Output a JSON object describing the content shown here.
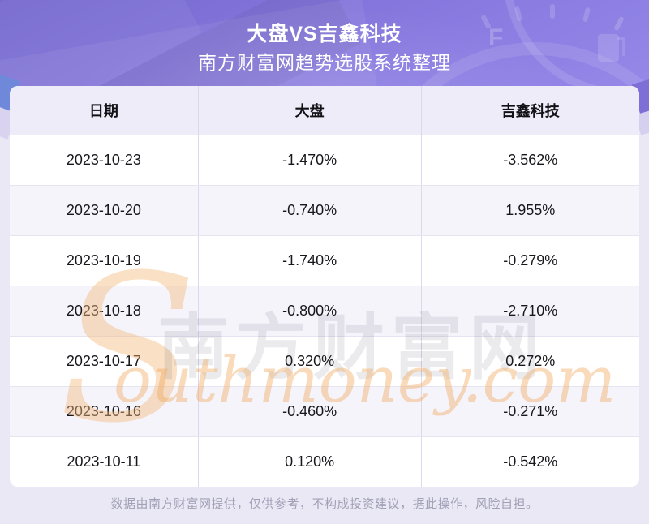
{
  "banner": {
    "title": "大盘VS吉鑫科技",
    "subtitle": "南方财富网趋势选股系统整理",
    "gauge_letter": "F"
  },
  "chart_data": {
    "type": "table",
    "title": "大盘VS吉鑫科技",
    "subtitle": "南方财富网趋势选股系统整理",
    "columns": [
      "日期",
      "大盘",
      "吉鑫科技"
    ],
    "rows": [
      [
        "2023-10-23",
        "-1.470%",
        "-3.562%"
      ],
      [
        "2023-10-20",
        "-0.740%",
        "1.955%"
      ],
      [
        "2023-10-19",
        "-1.740%",
        "-0.279%"
      ],
      [
        "2023-10-18",
        "-0.800%",
        "-2.710%"
      ],
      [
        "2023-10-17",
        "0.320%",
        "0.272%"
      ],
      [
        "2023-10-16",
        "-0.460%",
        "-0.271%"
      ],
      [
        "2023-10-11",
        "0.120%",
        "-0.542%"
      ]
    ],
    "categories": [
      "2023-10-23",
      "2023-10-20",
      "2023-10-19",
      "2023-10-18",
      "2023-10-17",
      "2023-10-16",
      "2023-10-11"
    ],
    "series": [
      {
        "name": "大盘",
        "values": [
          -1.47,
          -0.74,
          -1.74,
          -0.8,
          0.32,
          -0.46,
          0.12
        ]
      },
      {
        "name": "吉鑫科技",
        "values": [
          -3.562,
          1.955,
          -0.279,
          -2.71,
          0.272,
          -0.271,
          -0.542
        ]
      }
    ],
    "unit": "%"
  },
  "watermark": {
    "initial": "S",
    "word": "outhmoney.com",
    "cjk": "南方财富网"
  },
  "footer": {
    "disclaimer": "数据由南方财富网提供，仅供参考，不构成投资建议，据此操作，风险自担。"
  },
  "colors": {
    "banner_top": "#7568cd",
    "banner_bottom": "#9588e8",
    "page_bg": "#e9e8f4",
    "header_row_bg": "#eeecf8",
    "alt_row_bg": "#f5f4fb",
    "border": "#dcd8ee",
    "text": "#17171c",
    "footer_text": "#a2a0b6",
    "watermark_orange": "#f2a862"
  }
}
